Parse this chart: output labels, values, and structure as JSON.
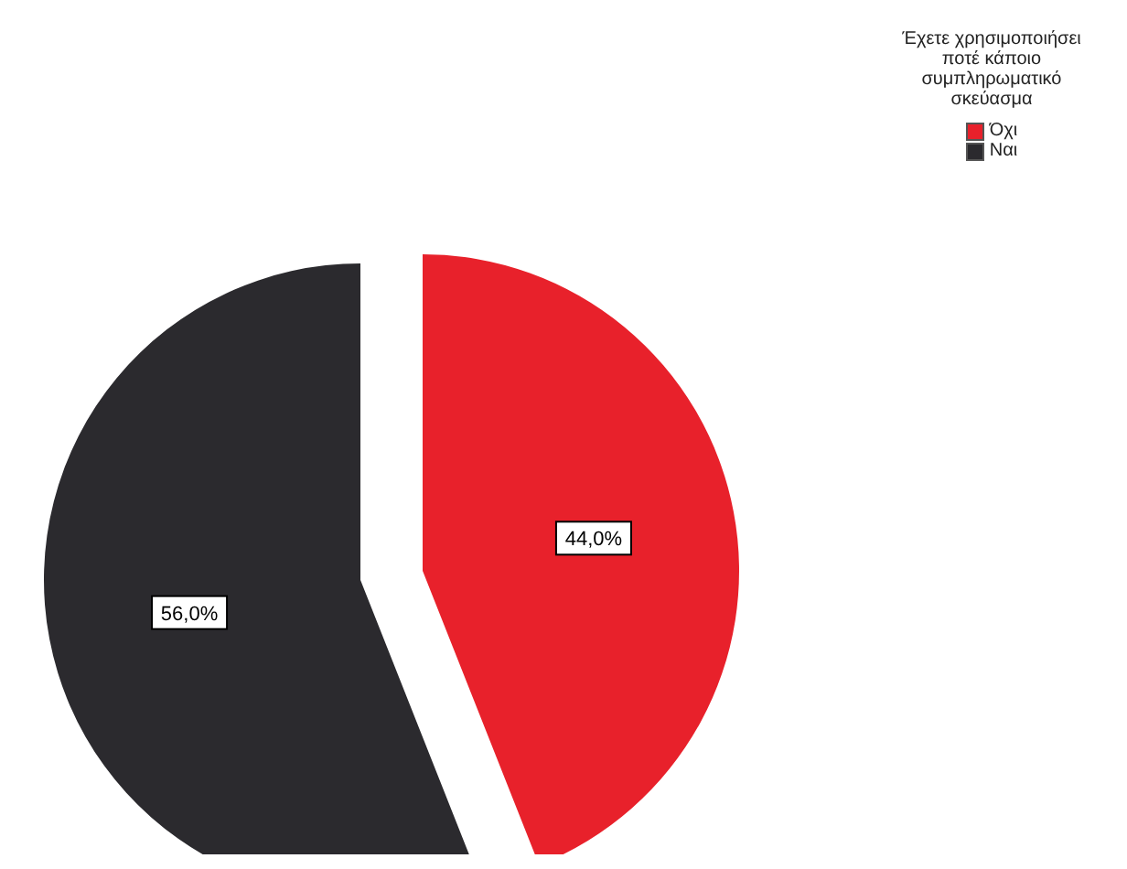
{
  "chart_data": {
    "type": "pie",
    "legend_title": "Έχετε χρησιμοποιήσει ποτέ κάποιο συμπληρωματικό σκεύασμα",
    "categories": [
      "Όχι",
      "Ναι"
    ],
    "values": [
      44.0,
      56.0
    ],
    "colors": [
      "#e8212b",
      "#2b2a2e"
    ],
    "value_labels": [
      "44,0%",
      "56,0%"
    ],
    "legend": "top right"
  }
}
